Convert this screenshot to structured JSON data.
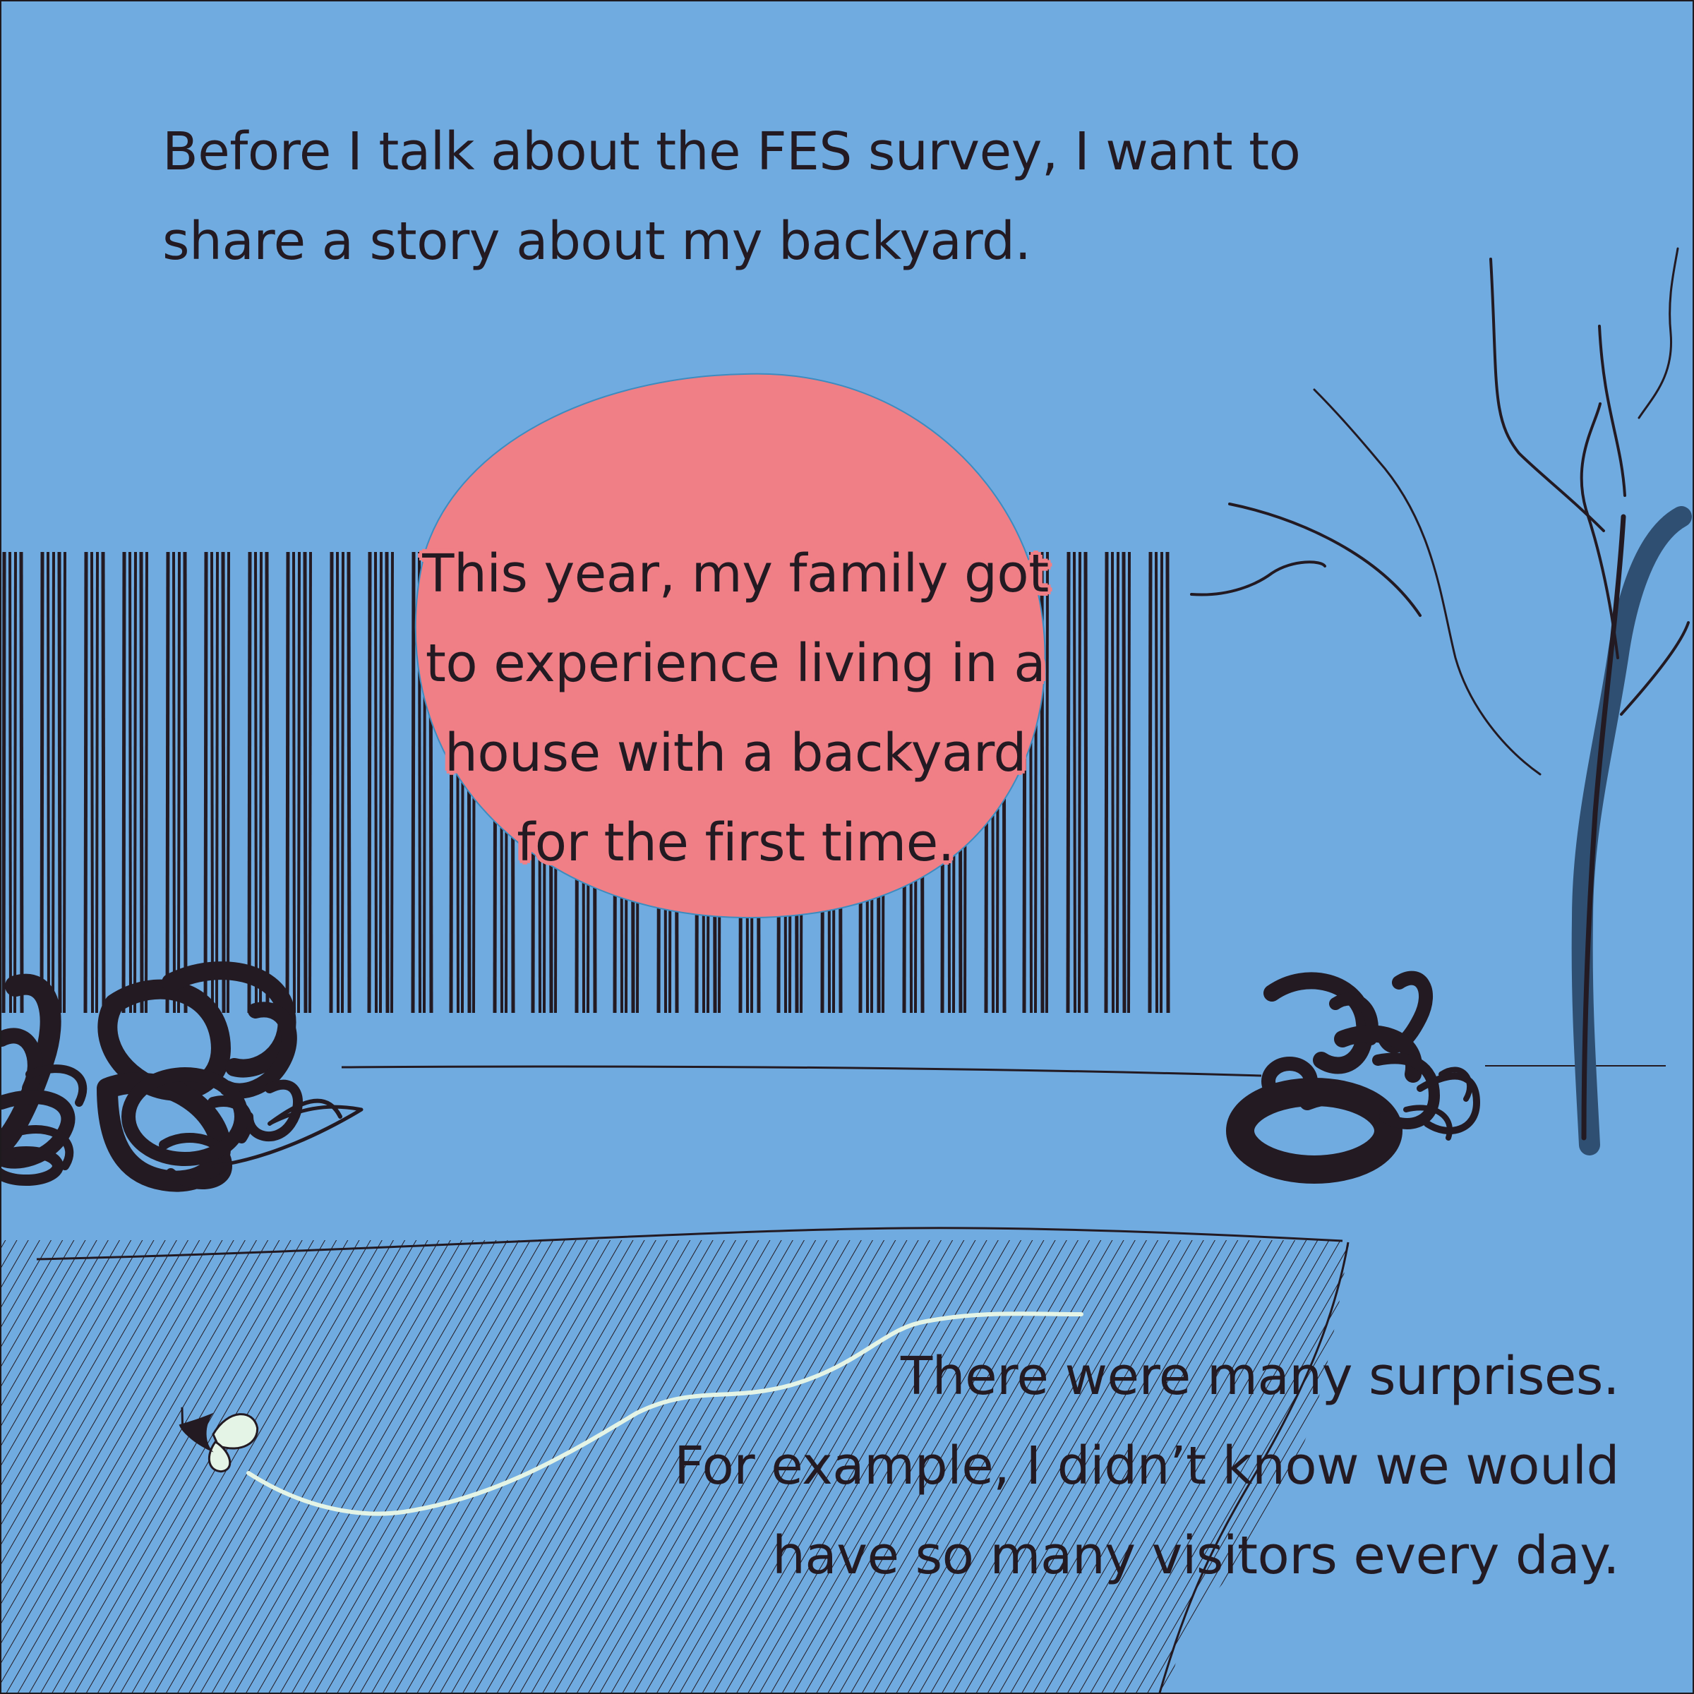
{
  "page": {
    "background_color": "#70abe0",
    "ink_color": "#231a22",
    "sun_color": "#f07f86",
    "butterfly_color": "#e4f4e6"
  },
  "texts": {
    "intro": "Before I talk about the FES survey, I want to\nshare a story about my backyard.",
    "circle": "This year, my family got\nto experience living in a\nhouse with a backyard\nfor the first time.",
    "bottom": "There were many surprises.\nFor example, I didn’t know we would\nhave so many visitors every day."
  },
  "illustration": {
    "elements": [
      "sun",
      "fence",
      "bushes",
      "ground-line",
      "bare-tree",
      "hatched-lawn",
      "butterfly",
      "flight-path"
    ]
  }
}
